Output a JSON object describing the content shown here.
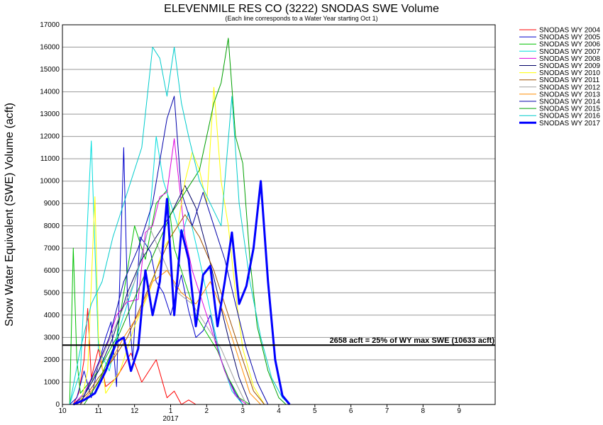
{
  "chart_data": {
    "type": "line",
    "title": "ELEVENMILE RES CO (3222) SNODAS SWE Volume",
    "subtitle": "(Each line corresponds to a Water Year starting Oct 1)",
    "ylabel": "Snow Water Equivalent (SWE) Volume (acft)",
    "xlabel": "",
    "ylim": [
      0,
      17000
    ],
    "y_ticks": [
      0,
      1000,
      2000,
      3000,
      4000,
      5000,
      6000,
      7000,
      8000,
      9000,
      10000,
      11000,
      12000,
      13000,
      14000,
      15000,
      16000,
      17000
    ],
    "xlim": [
      0,
      12
    ],
    "x_tick_labels": [
      "10",
      "11",
      "12",
      "1",
      "2",
      "3",
      "4",
      "5",
      "6",
      "7",
      "8",
      "9"
    ],
    "x_year_label": "2017",
    "grid": true,
    "legend_position": "right",
    "reference_line": {
      "value": 2658,
      "label": "2658 acft = 25% of WY max SWE (10633 acft)"
    },
    "series": [
      {
        "name": "SNODAS WY 2004",
        "color": "#ff0000",
        "width": 1,
        "points": [
          [
            0.3,
            0
          ],
          [
            0.45,
            500
          ],
          [
            0.6,
            2000
          ],
          [
            0.7,
            4300
          ],
          [
            0.8,
            1200
          ],
          [
            1.0,
            2500
          ],
          [
            1.2,
            800
          ],
          [
            1.5,
            1200
          ],
          [
            1.9,
            2300
          ],
          [
            2.2,
            1000
          ],
          [
            2.6,
            2000
          ],
          [
            2.9,
            300
          ],
          [
            3.1,
            600
          ],
          [
            3.3,
            0
          ],
          [
            3.5,
            200
          ],
          [
            3.7,
            0
          ],
          [
            4.2,
            0
          ]
        ]
      },
      {
        "name": "SNODAS WY 2005",
        "color": "#0000cc",
        "width": 1,
        "points": [
          [
            0.2,
            0
          ],
          [
            0.4,
            300
          ],
          [
            0.6,
            1500
          ],
          [
            0.8,
            300
          ],
          [
            1.0,
            1800
          ],
          [
            1.2,
            3000
          ],
          [
            1.35,
            3700
          ],
          [
            1.5,
            800
          ],
          [
            1.7,
            11500
          ],
          [
            1.8,
            5000
          ],
          [
            1.95,
            2000
          ],
          [
            2.15,
            7500
          ],
          [
            2.3,
            7200
          ],
          [
            2.45,
            6800
          ],
          [
            2.6,
            5500
          ],
          [
            2.8,
            5000
          ],
          [
            3.0,
            4000
          ],
          [
            3.3,
            5800
          ],
          [
            3.5,
            4200
          ],
          [
            3.7,
            3000
          ],
          [
            3.9,
            3300
          ],
          [
            4.1,
            4000
          ],
          [
            4.3,
            2500
          ],
          [
            4.5,
            1500
          ],
          [
            4.8,
            500
          ],
          [
            5.0,
            0
          ]
        ]
      },
      {
        "name": "SNODAS WY 2006",
        "color": "#00c000",
        "width": 1,
        "points": [
          [
            0.2,
            0
          ],
          [
            0.3,
            7000
          ],
          [
            0.4,
            2000
          ],
          [
            0.5,
            500
          ],
          [
            1.0,
            1500
          ],
          [
            1.5,
            3000
          ],
          [
            2.0,
            8000
          ],
          [
            2.3,
            6500
          ],
          [
            2.6,
            9000
          ],
          [
            2.9,
            9600
          ],
          [
            3.1,
            7000
          ],
          [
            3.4,
            5500
          ],
          [
            3.7,
            4000
          ],
          [
            4.0,
            3200
          ],
          [
            4.3,
            2400
          ],
          [
            4.6,
            1200
          ],
          [
            4.9,
            300
          ],
          [
            5.2,
            0
          ]
        ]
      },
      {
        "name": "SNODAS WY 2007",
        "color": "#00dddd",
        "width": 1,
        "points": [
          [
            0.2,
            0
          ],
          [
            0.5,
            1500
          ],
          [
            0.8,
            11800
          ],
          [
            0.9,
            7000
          ],
          [
            1.0,
            2500
          ],
          [
            1.3,
            1500
          ],
          [
            1.5,
            3000
          ],
          [
            1.8,
            4500
          ],
          [
            2.1,
            6000
          ],
          [
            2.4,
            8000
          ],
          [
            2.6,
            12000
          ],
          [
            2.8,
            10000
          ],
          [
            3.0,
            9000
          ],
          [
            3.3,
            7500
          ],
          [
            3.5,
            8600
          ],
          [
            3.8,
            6500
          ],
          [
            4.1,
            4200
          ],
          [
            4.4,
            2000
          ],
          [
            4.7,
            600
          ],
          [
            5.0,
            0
          ]
        ]
      },
      {
        "name": "SNODAS WY 2008",
        "color": "#dd00dd",
        "width": 1,
        "points": [
          [
            0.3,
            0
          ],
          [
            0.6,
            500
          ],
          [
            0.9,
            1500
          ],
          [
            1.2,
            2500
          ],
          [
            1.5,
            4000
          ],
          [
            1.8,
            4600
          ],
          [
            2.1,
            4700
          ],
          [
            2.3,
            7700
          ],
          [
            2.5,
            8000
          ],
          [
            2.7,
            9300
          ],
          [
            2.9,
            9500
          ],
          [
            3.1,
            11900
          ],
          [
            3.4,
            7500
          ],
          [
            3.6,
            6000
          ],
          [
            3.9,
            4500
          ],
          [
            4.2,
            3000
          ],
          [
            4.5,
            1500
          ],
          [
            4.8,
            400
          ],
          [
            5.1,
            0
          ]
        ]
      },
      {
        "name": "SNODAS WY 2009",
        "color": "#000066",
        "width": 1,
        "points": [
          [
            0.3,
            0
          ],
          [
            0.6,
            400
          ],
          [
            1.0,
            1500
          ],
          [
            1.4,
            3000
          ],
          [
            1.8,
            5000
          ],
          [
            2.2,
            6500
          ],
          [
            2.6,
            7500
          ],
          [
            3.0,
            8500
          ],
          [
            3.4,
            9800
          ],
          [
            3.7,
            8800
          ],
          [
            4.0,
            7000
          ],
          [
            4.3,
            5000
          ],
          [
            4.6,
            3000
          ],
          [
            4.9,
            1200
          ],
          [
            5.2,
            0
          ]
        ]
      },
      {
        "name": "SNODAS WY 2010",
        "color": "#ffff00",
        "width": 1,
        "points": [
          [
            0.5,
            0
          ],
          [
            0.7,
            1500
          ],
          [
            0.9,
            9300
          ],
          [
            1.0,
            3000
          ],
          [
            1.2,
            500
          ],
          [
            1.6,
            1500
          ],
          [
            2.0,
            3500
          ],
          [
            2.4,
            5000
          ],
          [
            2.8,
            7000
          ],
          [
            3.2,
            8000
          ],
          [
            3.4,
            10000
          ],
          [
            3.6,
            11300
          ],
          [
            3.8,
            10500
          ],
          [
            4.0,
            9000
          ],
          [
            4.2,
            14200
          ],
          [
            4.4,
            10000
          ],
          [
            4.6,
            8000
          ],
          [
            4.8,
            5000
          ],
          [
            5.0,
            2500
          ],
          [
            5.3,
            800
          ],
          [
            5.6,
            0
          ]
        ]
      },
      {
        "name": "SNODAS WY 2011",
        "color": "#a05000",
        "width": 1,
        "points": [
          [
            0.4,
            0
          ],
          [
            0.7,
            500
          ],
          [
            1.0,
            1200
          ],
          [
            1.4,
            2000
          ],
          [
            1.8,
            3000
          ],
          [
            2.2,
            4500
          ],
          [
            2.6,
            6000
          ],
          [
            3.0,
            7500
          ],
          [
            3.4,
            8500
          ],
          [
            3.8,
            7500
          ],
          [
            4.2,
            6000
          ],
          [
            4.6,
            4000
          ],
          [
            5.0,
            2000
          ],
          [
            5.3,
            600
          ],
          [
            5.6,
            0
          ]
        ]
      },
      {
        "name": "SNODAS WY 2012",
        "color": "#a0a0a0",
        "width": 1,
        "points": [
          [
            0.4,
            0
          ],
          [
            0.8,
            1000
          ],
          [
            1.2,
            2500
          ],
          [
            1.6,
            4000
          ],
          [
            2.0,
            5500
          ],
          [
            2.4,
            8000
          ],
          [
            2.8,
            6500
          ],
          [
            3.2,
            5000
          ],
          [
            3.6,
            4500
          ],
          [
            4.0,
            3500
          ],
          [
            4.4,
            2500
          ],
          [
            4.8,
            1000
          ],
          [
            5.1,
            0
          ]
        ]
      },
      {
        "name": "SNODAS WY 2013",
        "color": "#ff8c00",
        "width": 1,
        "points": [
          [
            0.5,
            0
          ],
          [
            0.9,
            800
          ],
          [
            1.3,
            1800
          ],
          [
            1.7,
            3000
          ],
          [
            2.1,
            4000
          ],
          [
            2.5,
            5500
          ],
          [
            2.9,
            6000
          ],
          [
            3.3,
            5000
          ],
          [
            3.7,
            4500
          ],
          [
            4.1,
            5500
          ],
          [
            4.5,
            4000
          ],
          [
            4.9,
            2000
          ],
          [
            5.2,
            500
          ],
          [
            5.5,
            0
          ]
        ]
      },
      {
        "name": "SNODAS WY 2014",
        "color": "#0000aa",
        "width": 1,
        "points": [
          [
            0.5,
            0
          ],
          [
            0.9,
            1500
          ],
          [
            1.3,
            3000
          ],
          [
            1.7,
            5500
          ],
          [
            2.1,
            7000
          ],
          [
            2.5,
            9000
          ],
          [
            2.9,
            12800
          ],
          [
            3.1,
            13800
          ],
          [
            3.3,
            9500
          ],
          [
            3.6,
            8000
          ],
          [
            3.9,
            9500
          ],
          [
            4.2,
            8000
          ],
          [
            4.5,
            6500
          ],
          [
            4.8,
            4500
          ],
          [
            5.1,
            2500
          ],
          [
            5.4,
            1000
          ],
          [
            5.7,
            0
          ]
        ]
      },
      {
        "name": "SNODAS WY 2015",
        "color": "#00a000",
        "width": 1,
        "points": [
          [
            0.6,
            0
          ],
          [
            1.0,
            1000
          ],
          [
            1.4,
            2500
          ],
          [
            1.8,
            4000
          ],
          [
            2.2,
            5500
          ],
          [
            2.6,
            7000
          ],
          [
            3.0,
            8500
          ],
          [
            3.4,
            9500
          ],
          [
            3.8,
            10500
          ],
          [
            4.2,
            13500
          ],
          [
            4.4,
            14400
          ],
          [
            4.6,
            16400
          ],
          [
            4.8,
            12000
          ],
          [
            5.0,
            10800
          ],
          [
            5.2,
            6500
          ],
          [
            5.4,
            3500
          ],
          [
            5.7,
            1500
          ],
          [
            6.0,
            300
          ],
          [
            6.2,
            0
          ]
        ]
      },
      {
        "name": "SNODAS WY 2016",
        "color": "#00cccc",
        "width": 1,
        "points": [
          [
            0.2,
            0
          ],
          [
            0.5,
            2500
          ],
          [
            0.8,
            4500
          ],
          [
            1.1,
            5500
          ],
          [
            1.4,
            7500
          ],
          [
            1.8,
            9500
          ],
          [
            2.2,
            11500
          ],
          [
            2.5,
            16000
          ],
          [
            2.7,
            15500
          ],
          [
            2.9,
            13800
          ],
          [
            3.1,
            16000
          ],
          [
            3.3,
            13500
          ],
          [
            3.5,
            12000
          ],
          [
            3.8,
            10000
          ],
          [
            4.1,
            9000
          ],
          [
            4.4,
            8000
          ],
          [
            4.7,
            13800
          ],
          [
            4.9,
            9000
          ],
          [
            5.2,
            5500
          ],
          [
            5.5,
            3000
          ],
          [
            5.8,
            1200
          ],
          [
            6.1,
            300
          ],
          [
            6.3,
            0
          ]
        ]
      },
      {
        "name": "SNODAS WY 2017",
        "color": "#0000ff",
        "width": 3,
        "points": [
          [
            0.3,
            0
          ],
          [
            0.6,
            200
          ],
          [
            0.9,
            500
          ],
          [
            1.2,
            1500
          ],
          [
            1.5,
            2800
          ],
          [
            1.7,
            3000
          ],
          [
            1.9,
            1500
          ],
          [
            2.1,
            2500
          ],
          [
            2.3,
            6000
          ],
          [
            2.5,
            4000
          ],
          [
            2.7,
            5500
          ],
          [
            2.9,
            9200
          ],
          [
            3.1,
            4000
          ],
          [
            3.3,
            7800
          ],
          [
            3.5,
            6500
          ],
          [
            3.7,
            3500
          ],
          [
            3.9,
            5800
          ],
          [
            4.1,
            6200
          ],
          [
            4.3,
            3500
          ],
          [
            4.5,
            5500
          ],
          [
            4.7,
            7700
          ],
          [
            4.9,
            4500
          ],
          [
            5.1,
            5300
          ],
          [
            5.3,
            7000
          ],
          [
            5.5,
            10000
          ],
          [
            5.7,
            5500
          ],
          [
            5.9,
            2000
          ],
          [
            6.1,
            400
          ],
          [
            6.3,
            0
          ]
        ]
      }
    ]
  }
}
